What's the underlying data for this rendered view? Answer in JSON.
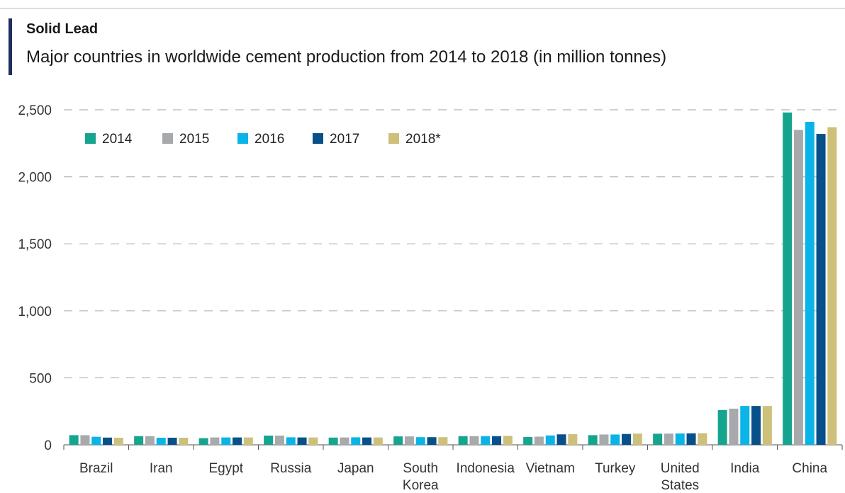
{
  "header": {
    "title": "Solid Lead",
    "subtitle": "Major countries in worldwide cement production from 2014 to 2018 (in million tonnes)"
  },
  "chart_data": {
    "type": "bar",
    "categories": [
      [
        "Brazil"
      ],
      [
        "Iran"
      ],
      [
        "Egypt"
      ],
      [
        "Russia"
      ],
      [
        "Japan"
      ],
      [
        "South",
        "Korea"
      ],
      [
        "Indonesia"
      ],
      [
        "Vietnam"
      ],
      [
        "Turkey"
      ],
      [
        "United",
        "States"
      ],
      [
        "India"
      ],
      [
        "China"
      ]
    ],
    "series": [
      {
        "name": "2014",
        "color": "#15a58e",
        "values": [
          72,
          65,
          50,
          69,
          54,
          63,
          65,
          58,
          72,
          83,
          260,
          2480
        ]
      },
      {
        "name": "2015",
        "color": "#a7a9ac",
        "values": [
          72,
          65,
          55,
          69,
          55,
          63,
          65,
          61,
          77,
          84,
          270,
          2350
        ]
      },
      {
        "name": "2016",
        "color": "#0ab4e6",
        "values": [
          60,
          53,
          55,
          56,
          56,
          57,
          65,
          70,
          77,
          85,
          290,
          2410
        ]
      },
      {
        "name": "2017",
        "color": "#07508a",
        "values": [
          54,
          53,
          55,
          55,
          55,
          57,
          65,
          78,
          81,
          86,
          290,
          2320
        ]
      },
      {
        "name": "2018*",
        "color": "#cdc07a",
        "values": [
          53,
          53,
          55,
          55,
          55,
          57,
          67,
          80,
          84,
          87,
          290,
          2370
        ]
      }
    ],
    "y_ticks": [
      "0",
      "500",
      "1,000",
      "1,500",
      "2,000",
      "2,500"
    ],
    "ylim": [
      0,
      2500
    ],
    "grid": "dashed horizontal",
    "legend_position": "top-left"
  }
}
